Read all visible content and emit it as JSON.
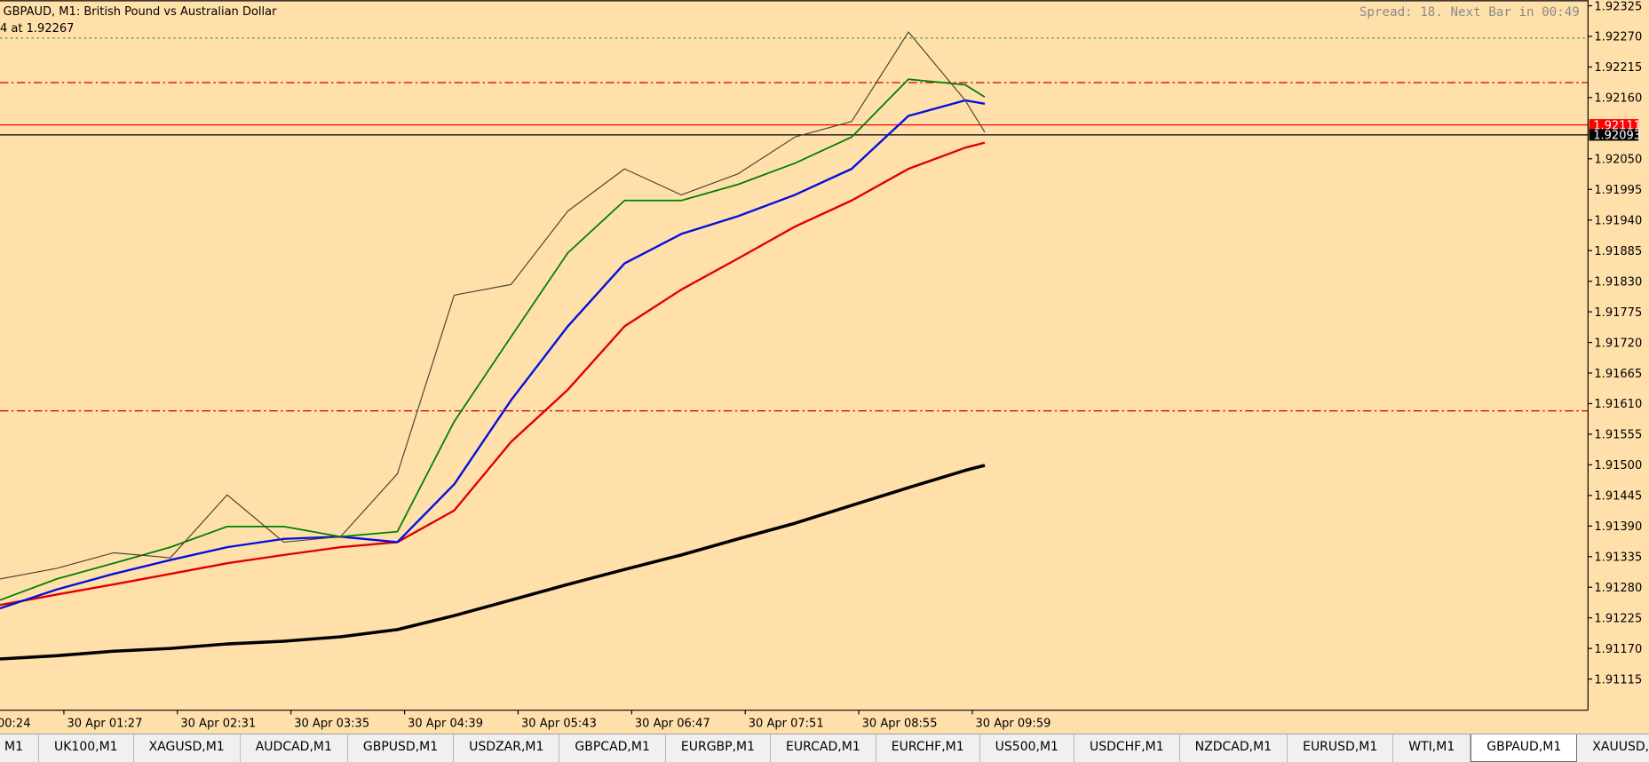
{
  "window": {
    "title": "GBPAUD, M1:  British Pound vs Australian Dollar",
    "info": "4 at 1.92267",
    "status": "Spread: 18. Next Bar in 00:49"
  },
  "chart_data": {
    "type": "line",
    "x": [
      "30 Apr 00:51",
      "30 Apr 01:23",
      "30 Apr 01:55",
      "30 Apr 02:27",
      "30 Apr 02:59",
      "30 Apr 03:31",
      "30 Apr 04:03",
      "30 Apr 04:35",
      "30 Apr 05:07",
      "30 Apr 05:39",
      "30 Apr 06:11",
      "30 Apr 06:43",
      "30 Apr 07:15",
      "30 Apr 07:47",
      "30 Apr 08:19",
      "30 Apr 08:51",
      "30 Apr 09:23",
      "30 Apr 09:55",
      "30 Apr 10:06"
    ],
    "series": [
      {
        "color": "#000000",
        "width": 3,
        "values": [
          1.91151,
          1.91157,
          1.91165,
          1.9117,
          1.91178,
          1.91183,
          1.91191,
          1.91204,
          1.91229,
          1.91257,
          1.91285,
          1.91312,
          1.91338,
          1.91367,
          1.91395,
          1.91427,
          1.91459,
          1.9149,
          1.91499
        ]
      },
      {
        "color": "#e00000",
        "width": 2,
        "values": [
          1.91248,
          1.91267,
          1.91285,
          1.91304,
          1.91323,
          1.91338,
          1.91352,
          1.91361,
          1.91418,
          1.91541,
          1.91635,
          1.91749,
          1.91815,
          1.91871,
          1.91928,
          1.91975,
          1.92032,
          1.9207,
          1.92079
        ]
      },
      {
        "color": "#0010e0",
        "width": 2,
        "values": [
          1.91242,
          1.91276,
          1.91304,
          1.91329,
          1.91352,
          1.91367,
          1.91371,
          1.91361,
          1.91465,
          1.91616,
          1.91749,
          1.91862,
          1.91915,
          1.91947,
          1.91985,
          1.92032,
          1.92127,
          1.92155,
          1.92149
        ]
      },
      {
        "color": "#008000",
        "width": 1.5,
        "values": [
          1.91257,
          1.91295,
          1.91323,
          1.91352,
          1.91389,
          1.91389,
          1.91371,
          1.9138,
          1.91578,
          1.9173,
          1.91881,
          1.91975,
          1.91975,
          1.92004,
          1.92042,
          1.92089,
          1.92193,
          1.92183,
          1.92161
        ]
      },
      {
        "color": "#4d4530",
        "width": 1,
        "values": [
          1.91295,
          1.91314,
          1.91342,
          1.91333,
          1.91446,
          1.91361,
          1.91371,
          1.91484,
          1.91805,
          1.91824,
          1.91956,
          1.92032,
          1.91985,
          1.92023,
          1.92089,
          1.92117,
          1.92278,
          1.92155,
          1.92098
        ]
      }
    ],
    "xlim": [
      "30 Apr 00:51",
      "30 Apr 15:46"
    ],
    "xticks": [
      "30 Apr 00:24",
      "30 Apr 01:27",
      "30 Apr 02:31",
      "30 Apr 03:35",
      "30 Apr 04:39",
      "30 Apr 05:43",
      "30 Apr 06:47",
      "30 Apr 07:51",
      "30 Apr 08:55",
      "30 Apr 09:59"
    ],
    "ylim": [
      1.91059,
      1.92335
    ],
    "yticks": [
      1.92325,
      {
        "value": 1.9227,
        "label": "1.92270"
      },
      1.92215,
      {
        "value": 1.9216,
        "label": "1.92160"
      },
      {
        "value": 1.9205,
        "label": "1.92050"
      },
      1.91995,
      {
        "value": 1.9194,
        "label": "1.91940"
      },
      1.91885,
      {
        "value": 1.9183,
        "label": "1.91830"
      },
      1.91775,
      {
        "value": 1.9172,
        "label": "1.91720"
      },
      1.91665,
      {
        "value": 1.9161,
        "label": "1.91610"
      },
      1.91555,
      {
        "value": 1.915,
        "label": "1.91500"
      },
      1.91445,
      {
        "value": 1.9139,
        "label": "1.91390"
      },
      1.91335,
      {
        "value": 1.9128,
        "label": "1.91280"
      },
      1.91225,
      {
        "value": 1.9117,
        "label": "1.91170"
      },
      1.91115
    ],
    "levels": [
      {
        "value": 1.92267,
        "color": "#30a030",
        "style": "dotted"
      },
      {
        "value": 1.92187,
        "color": "#c00000",
        "style": "dashdot"
      },
      {
        "value": 1.91597,
        "color": "#c00000",
        "style": "dashdot"
      },
      {
        "value": 1.92111,
        "color": "#ff0000",
        "style": "solid",
        "labeled": true
      },
      {
        "value": 1.92093,
        "color": "#000000",
        "style": "solid",
        "labeled": true
      }
    ],
    "background": "#ffe0aa"
  },
  "tabs": {
    "items": [
      "M1",
      "UK100,M1",
      "XAGUSD,M1",
      "AUDCAD,M1",
      "GBPUSD,M1",
      "USDZAR,M1",
      "GBPCAD,M1",
      "EURGBP,M1",
      "EURCAD,M1",
      "EURCHF,M1",
      "US500,M1",
      "USDCHF,M1",
      "NZDCAD,M1",
      "EURUSD,M1",
      "WTI,M1",
      "GBPAUD,M1",
      "XAUUSD,M1"
    ],
    "active": 15
  }
}
